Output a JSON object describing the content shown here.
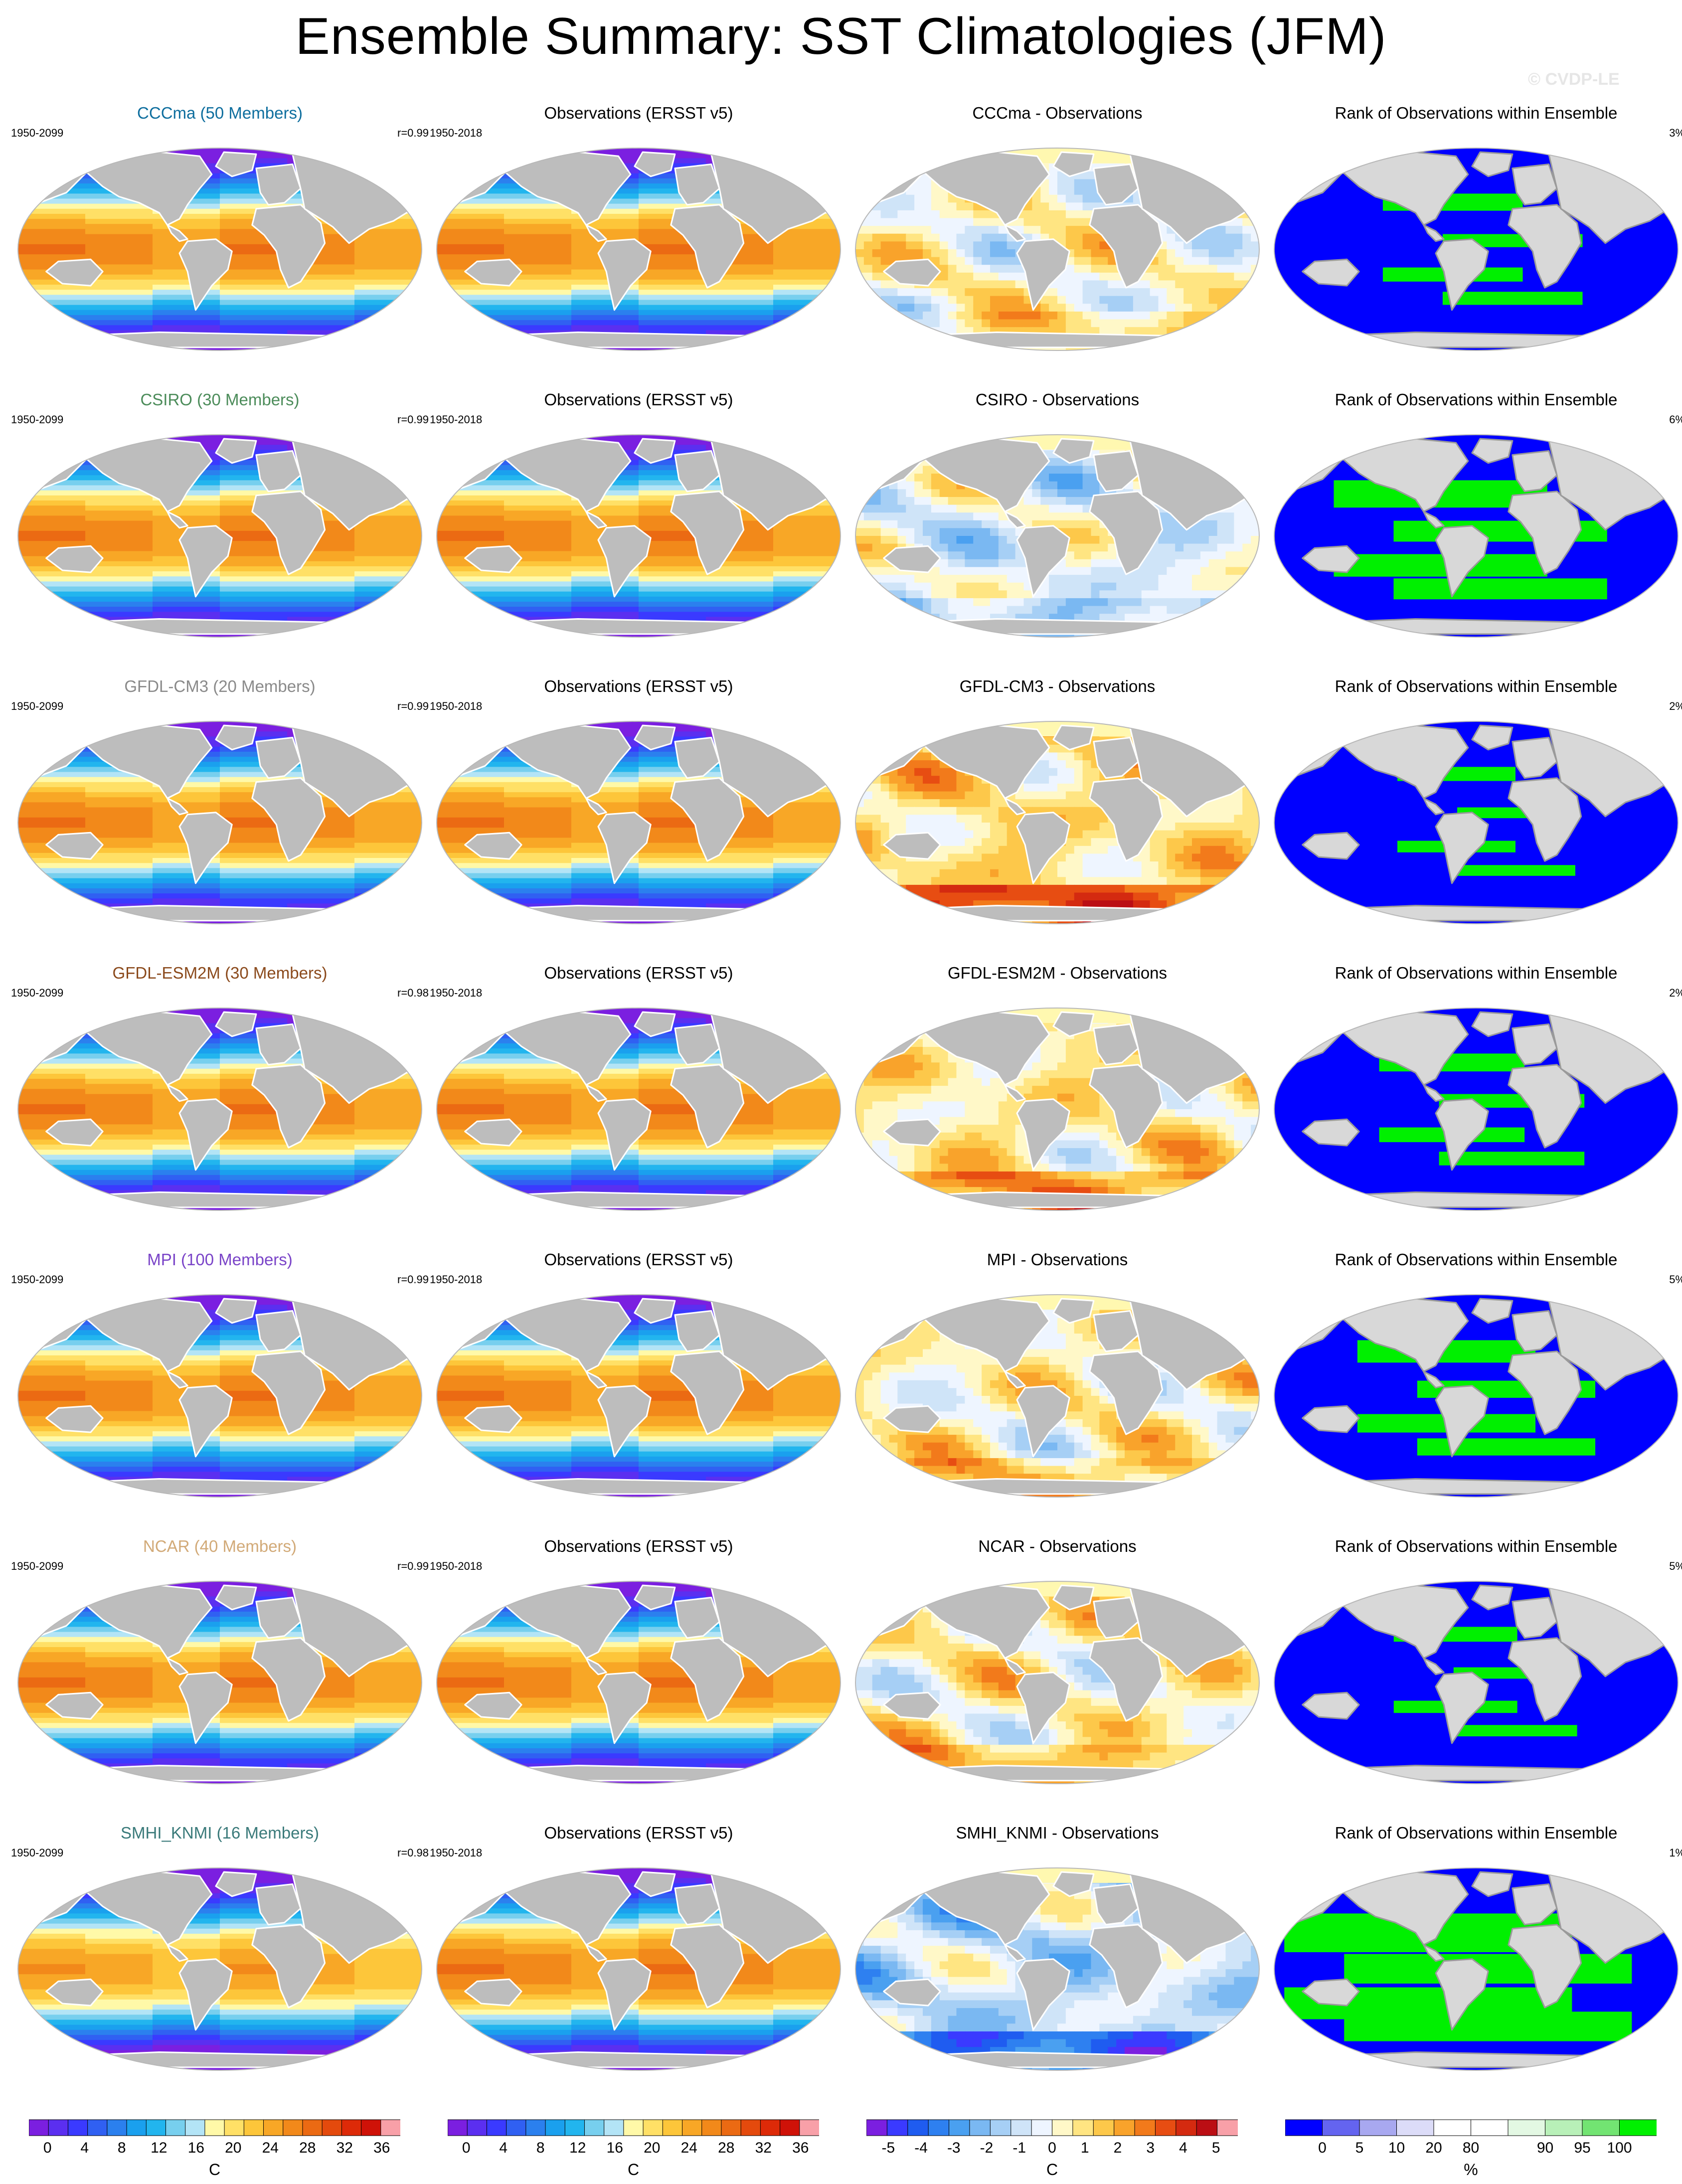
{
  "title": "Ensemble Summary: SST Climatologies (JFM)",
  "watermark": "© CVDP-LE",
  "rows": [
    {
      "model_title": "CCCma (50 Members)",
      "model_color": "#0e6e9e",
      "model_period": "1950-2099",
      "r": "r=0.99",
      "obs_title": "Observations (ERSST v5)",
      "obs_period": "1950-2018",
      "diff_title": "CCCma - Observations",
      "rank_title": "Rank of Observations within Ensemble",
      "rank_pct": "3%",
      "model_bias": 0,
      "diff_bias": 0.25,
      "rank_green": 0.18
    },
    {
      "model_title": "CSIRO (30 Members)",
      "model_color": "#4c8c5a",
      "model_period": "1950-2099",
      "r": "r=0.99",
      "obs_title": "Observations (ERSST v5)",
      "obs_period": "1950-2018",
      "diff_title": "CSIRO - Observations",
      "rank_title": "Rank of Observations within Ensemble",
      "rank_pct": "6%",
      "model_bias": 0,
      "diff_bias": -0.35,
      "rank_green": 0.45
    },
    {
      "model_title": "GFDL-CM3 (20 Members)",
      "model_color": "#8a8a8a",
      "model_period": "1950-2099",
      "r": "r=0.99",
      "obs_title": "Observations (ERSST v5)",
      "obs_period": "1950-2018",
      "diff_title": "GFDL-CM3 - Observations",
      "rank_title": "Rank of Observations within Ensemble",
      "rank_pct": "2%",
      "model_bias": 0,
      "diff_bias": 0.9,
      "rank_green": 0.1
    },
    {
      "model_title": "GFDL-ESM2M (30 Members)",
      "model_color": "#8b4a1c",
      "model_period": "1950-2099",
      "r": "r=0.98",
      "obs_title": "Observations (ERSST v5)",
      "obs_period": "1950-2018",
      "diff_title": "GFDL-ESM2M - Observations",
      "rank_title": "Rank of Observations within Ensemble",
      "rank_pct": "2%",
      "model_bias": 0,
      "diff_bias": 0.6,
      "rank_green": 0.2
    },
    {
      "model_title": "MPI (100 Members)",
      "model_color": "#7a44c8",
      "model_period": "1950-2099",
      "r": "r=0.99",
      "obs_title": "Observations (ERSST v5)",
      "obs_period": "1950-2018",
      "diff_title": "MPI - Observations",
      "rank_title": "Rank of Observations within Ensemble",
      "rank_pct": "5%",
      "model_bias": 0,
      "diff_bias": 0.35,
      "rank_green": 0.32
    },
    {
      "model_title": "NCAR (40 Members)",
      "model_color": "#d2aa78",
      "model_period": "1950-2099",
      "r": "r=0.99",
      "obs_title": "Observations (ERSST v5)",
      "obs_period": "1950-2018",
      "diff_title": "NCAR - Observations",
      "rank_title": "Rank of Observations within Ensemble",
      "rank_pct": "5%",
      "model_bias": 0,
      "diff_bias": 0.4,
      "rank_green": 0.12
    },
    {
      "model_title": "SMHI_KNMI (16 Members)",
      "model_color": "#3a7a7a",
      "model_period": "1950-2099",
      "r": "r=0.98",
      "obs_title": "Observations (ERSST v5)",
      "obs_period": "1950-2018",
      "diff_title": "SMHI_KNMI - Observations",
      "rank_title": "Rank of Observations within Ensemble",
      "rank_pct": "1%",
      "model_bias": -2,
      "diff_bias": -1.0,
      "rank_green": 0.75
    }
  ],
  "colorbars": {
    "sst": {
      "ticks": [
        "0",
        "4",
        "8",
        "12",
        "16",
        "20",
        "24",
        "28",
        "32",
        "36"
      ],
      "unit": "C",
      "colors": [
        "#7b1fe0",
        "#5b2ff0",
        "#3a3aff",
        "#3060f2",
        "#2b80ee",
        "#1aa0ee",
        "#22b5ee",
        "#77cfee",
        "#b3e4f6",
        "#fff9a8",
        "#ffe066",
        "#fdc63a",
        "#f8a726",
        "#f2891a",
        "#eb6a13",
        "#e44a0d",
        "#dd2a08",
        "#cf1208",
        "#f8a0a8"
      ]
    },
    "diff": {
      "ticks": [
        "-5",
        "-4",
        "-3",
        "-2",
        "-1",
        "0",
        "1",
        "2",
        "3",
        "4",
        "5"
      ],
      "unit": "C",
      "colors": [
        "#7b1fe0",
        "#3a3aff",
        "#1f5cf0",
        "#2e80f0",
        "#4aa0f0",
        "#7ab8f2",
        "#a6cff5",
        "#cfe4f8",
        "#eef5ff",
        "#fff8c8",
        "#ffe582",
        "#fdc84a",
        "#f9a32b",
        "#f27a1b",
        "#e74d12",
        "#d42a10",
        "#bb0e14",
        "#f8a0a8"
      ]
    },
    "rank": {
      "ticks": [
        "0",
        "5",
        "10",
        "20",
        "80",
        "90",
        "95",
        "100"
      ],
      "unit": "%",
      "colors": [
        "#0000ff",
        "#6464f0",
        "#a8a8f0",
        "#dcdcf8",
        "#ffffff",
        "#ffffff",
        "#e3f8e3",
        "#b8f0b8",
        "#72e472",
        "#00f000"
      ]
    }
  }
}
